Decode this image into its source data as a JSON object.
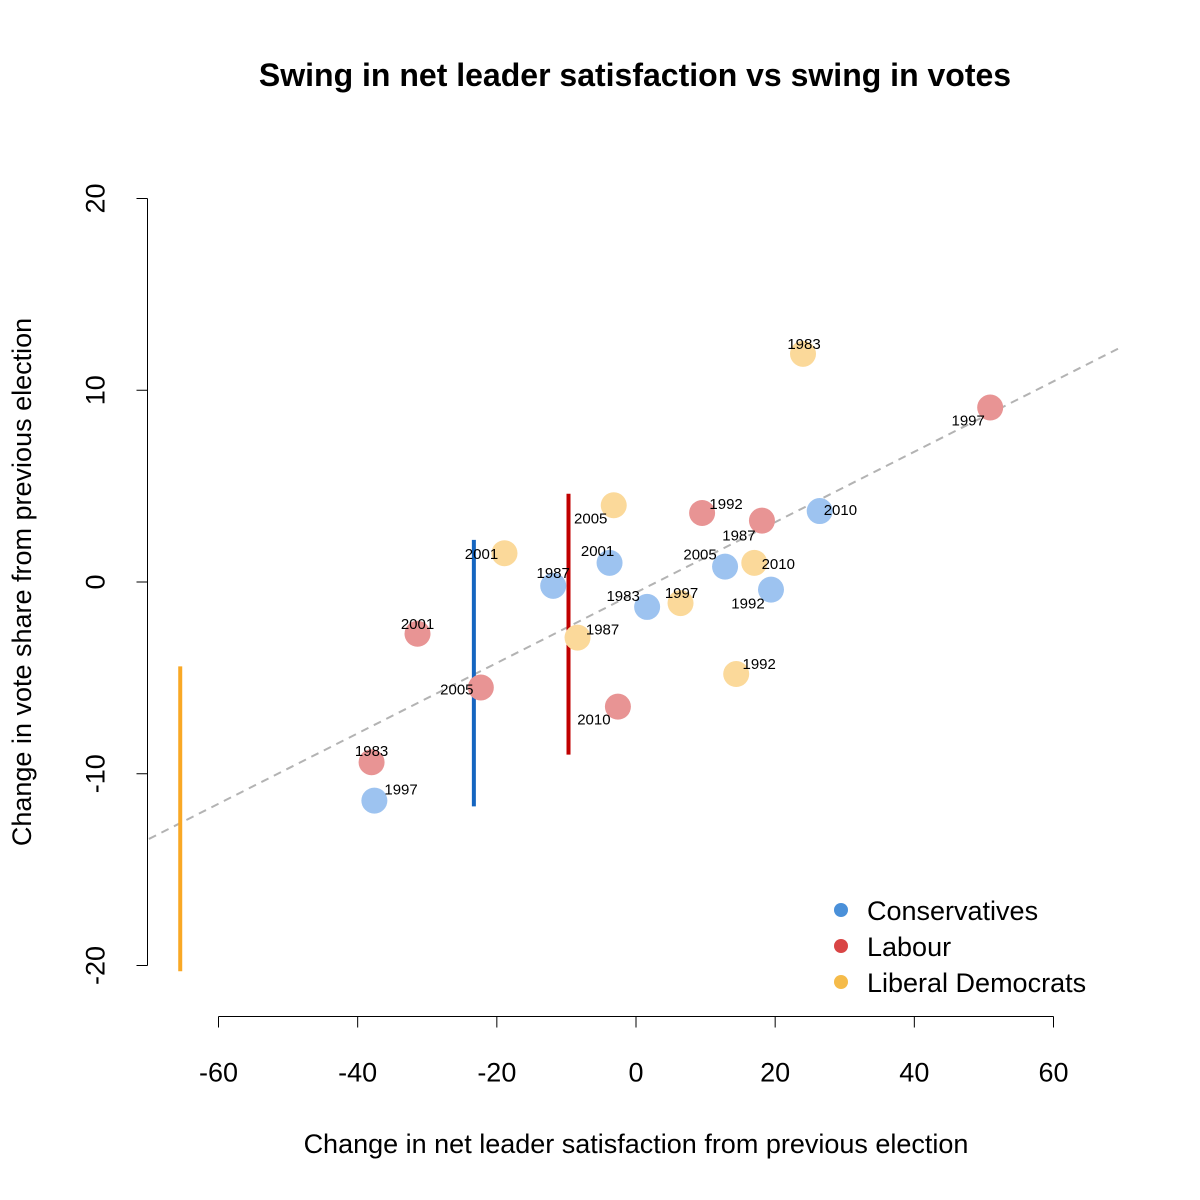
{
  "chart_data": {
    "type": "scatter",
    "title": "Swing in net leader satisfaction vs swing in votes",
    "xlabel": "Change in net leader satisfaction from previous election",
    "ylabel": "Change in vote share from previous election",
    "xlim": [
      -60,
      60
    ],
    "ylim": [
      -20,
      20
    ],
    "xticks": [
      -60,
      -40,
      -20,
      0,
      20,
      40,
      60
    ],
    "yticks": [
      -20,
      -10,
      0,
      10,
      20
    ],
    "grid": false,
    "legend_position": "bottom-right",
    "series": [
      {
        "name": "Conservatives",
        "color": "#4A90D9",
        "point_color": "#9DC3F0",
        "points": [
          {
            "x": -37.6,
            "y": -11.4,
            "label": "1997"
          },
          {
            "x": -11.9,
            "y": -0.2,
            "label": "1987"
          },
          {
            "x": -3.8,
            "y": 1.0,
            "label": "2001"
          },
          {
            "x": 1.6,
            "y": -1.3,
            "label": "1983"
          },
          {
            "x": 12.8,
            "y": 0.8,
            "label": "2005"
          },
          {
            "x": 19.4,
            "y": -0.4,
            "label": "1992"
          },
          {
            "x": 26.4,
            "y": 3.7,
            "label": "2010"
          }
        ]
      },
      {
        "name": "Labour",
        "color": "#D94545",
        "point_color": "#E89494",
        "points": [
          {
            "x": -38.0,
            "y": -9.4,
            "label": "1983"
          },
          {
            "x": -31.4,
            "y": -2.7,
            "label": "2001"
          },
          {
            "x": -22.3,
            "y": -5.5,
            "label": "2005"
          },
          {
            "x": -2.6,
            "y": -6.5,
            "label": "2010"
          },
          {
            "x": 9.5,
            "y": 3.6,
            "label": "1992"
          },
          {
            "x": 18.1,
            "y": 3.2,
            "label": "1987"
          },
          {
            "x": 50.9,
            "y": 9.1,
            "label": "1997"
          }
        ]
      },
      {
        "name": "Liberal Democrats",
        "color": "#F5BB4A",
        "point_color": "#FBD99A",
        "points": [
          {
            "x": -18.9,
            "y": 1.5,
            "label": "2001"
          },
          {
            "x": -8.4,
            "y": -2.9,
            "label": "1987"
          },
          {
            "x": -3.2,
            "y": 4.0,
            "label": "2005"
          },
          {
            "x": 6.4,
            "y": -1.1,
            "label": "1997"
          },
          {
            "x": 14.4,
            "y": -4.8,
            "label": "1992"
          },
          {
            "x": 17.0,
            "y": 1.0,
            "label": "2010"
          },
          {
            "x": 24.0,
            "y": 11.9,
            "label": "1983"
          }
        ]
      }
    ],
    "reference_line": {
      "style": "dashed",
      "color": "#B3B3B3",
      "from": {
        "x": -70,
        "y": -13.4
      },
      "to": {
        "x": 70,
        "y": 12.3
      }
    },
    "vertical_segments": [
      {
        "color": "#F9A825",
        "x": -65.5,
        "y_from": -20.3,
        "y_to": -4.4
      },
      {
        "color": "#1565C0",
        "x": -23.3,
        "y_from": -11.7,
        "y_to": 2.2
      },
      {
        "color": "#C00000",
        "x": -9.7,
        "y_from": -9.0,
        "y_to": 4.6
      }
    ]
  }
}
